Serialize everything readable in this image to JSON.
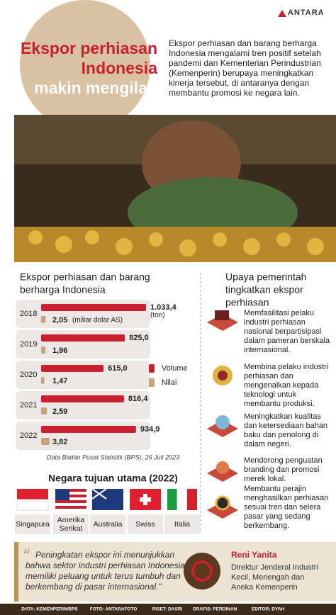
{
  "header": {
    "logo": "ANTARA",
    "title": [
      "Ekspor perhiasan",
      "Indonesia",
      "makin mengilap"
    ],
    "intro": [
      "Ekspor perhiasan dan barang berharga",
      "Indonesia mengalami tren positif setelah",
      "pandemi dan Kementerian Perindustrian",
      "(Kemenperin) berupaya meningkatkan",
      "kinerja tersebut, di antaranya dengan",
      "membantu promosi ke negara lain."
    ]
  },
  "chart_data": {
    "type": "bar",
    "title": [
      "Ekspor perhiasan dan barang",
      "berharga Indonesia"
    ],
    "categories": [
      "2018",
      "2019",
      "2020",
      "2021",
      "2022"
    ],
    "series": [
      {
        "name": "Volume",
        "unit": "(ton)",
        "color": "#c8202e",
        "values": [
          1033.4,
          825.0,
          615.0,
          816.4,
          934.9
        ],
        "value_labels": [
          "1.033,4",
          "825,0",
          "615,0",
          "816,4",
          "934,9"
        ]
      },
      {
        "name": "Nilai",
        "unit": "(miliar dolar AS)",
        "color": "#c9a27a",
        "values": [
          2.05,
          1.96,
          1.47,
          2.59,
          3.82
        ],
        "value_labels": [
          "2,05",
          "1,96",
          "1,47",
          "2,59",
          "3,82"
        ]
      }
    ],
    "source": "Data Badan Pusat Statistik (BPS), 26 Juli 2023"
  },
  "destinations": {
    "title": "Negara tujuan utama (2022)",
    "countries": [
      {
        "lines": [
          "Singapura"
        ]
      },
      {
        "lines": [
          "Amerika",
          "Serikat"
        ]
      },
      {
        "lines": [
          "Australia"
        ]
      },
      {
        "lines": [
          "Swiss"
        ]
      },
      {
        "lines": [
          "Italia"
        ]
      }
    ]
  },
  "efforts": {
    "title": [
      "Upaya pemerintah",
      "tingkatkan ekspor",
      "perhiasan"
    ],
    "items": [
      {
        "lines": [
          "Memfasilitasi pelaku",
          "industri perhiasan",
          "nasional berpartisipasi",
          "dalam pameran berskala",
          "internasional."
        ]
      },
      {
        "lines": [
          "Membina pelaku industri",
          "perhiasan dan",
          "mengenalkan kepada",
          "teknologi untuk",
          "membantu produksi."
        ]
      },
      {
        "lines": [
          "Meningkatkan kualitas",
          "dan ketersediaan bahan",
          "baku dan penolong di",
          "dalam negeri."
        ]
      },
      {
        "lines": [
          "Mendorong penguatan",
          "branding dan promosi",
          "merek lokal."
        ]
      },
      {
        "lines": [
          "Membantu perajin",
          "menghasilkan perhiasan",
          "sesuai tren dan selera",
          "pasar yang sedang",
          "berkembang."
        ]
      }
    ]
  },
  "quote": {
    "text": [
      "Peningkatan ekspor ini menunjukkan",
      "bahwa sektor industri perhiasan Indonesia",
      "memiliki peluang untuk terus tumbuh dan",
      "berkembang di pasar internasional.\""
    ],
    "name": "Reni Yanita",
    "role": [
      "Direktur Jenderal Industri",
      "Kecil, Menengah dan",
      "Aneka Kemenperin"
    ]
  },
  "credits": [
    "DATA: KEMENPERIN/BPS",
    "FOTO: ANTARAFOTO",
    "RISET: DASRI",
    "GRAFIS: PERDINAN",
    "EDITOR: DYAH"
  ]
}
